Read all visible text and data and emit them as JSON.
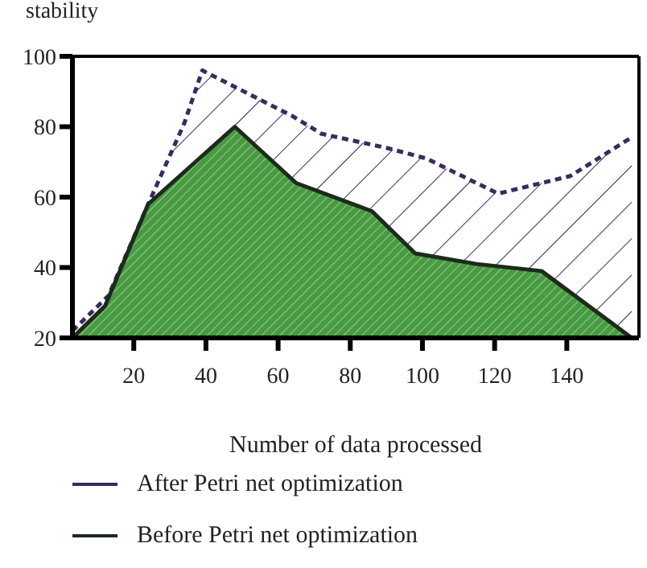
{
  "chart_data": {
    "type": "area",
    "ylabel": "stability",
    "xlabel": "Number of data processed",
    "xlim": [
      3,
      160
    ],
    "xticks": [
      20,
      40,
      60,
      80,
      100,
      120,
      140
    ],
    "ylim": [
      20,
      100
    ],
    "yticks": [
      20,
      40,
      60,
      80,
      100
    ],
    "legend": "bottom",
    "series": [
      {
        "name": "After Petri net optimization",
        "color": "#3a2a5e",
        "line_style": "dashed",
        "x": [
          3,
          13,
          24,
          34,
          39,
          64,
          72,
          90,
          101,
          121,
          141,
          158
        ],
        "values": [
          22,
          32,
          58,
          81,
          96,
          83,
          78,
          74,
          71,
          61,
          66,
          77
        ]
      },
      {
        "name": "Before Petri net optimization",
        "color": "#4a9a44",
        "line_style": "solid",
        "x": [
          3,
          12,
          24,
          48,
          65,
          86,
          98,
          115,
          133,
          158
        ],
        "values": [
          20,
          29,
          58,
          80,
          64,
          56,
          44,
          41,
          39,
          20
        ]
      }
    ]
  }
}
